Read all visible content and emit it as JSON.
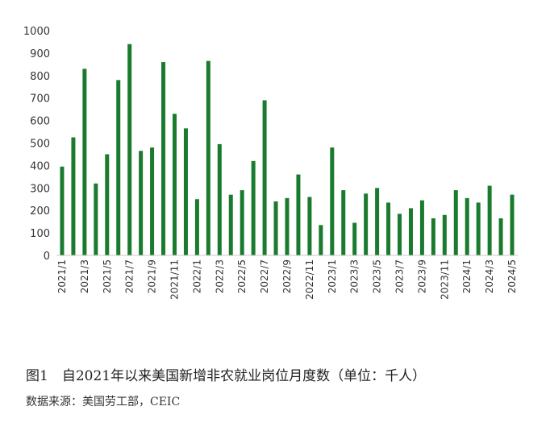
{
  "caption": "图1　自2021年以来美国新增非农就业岗位月度数（单位：千人）",
  "source": "数据来源：美国劳工部，CEIC",
  "colors": {
    "bar": "#1a7a2e",
    "axis": "#c8c8c8",
    "text": "#333333"
  },
  "chart_data": {
    "type": "bar",
    "ylim": [
      0,
      1000
    ],
    "yticks": [
      0,
      100,
      200,
      300,
      400,
      500,
      600,
      700,
      800,
      900,
      1000
    ],
    "grid": false,
    "categories": [
      "2021/1",
      "2021/2",
      "2021/3",
      "2021/4",
      "2021/5",
      "2021/6",
      "2021/7",
      "2021/8",
      "2021/9",
      "2021/10",
      "2021/11",
      "2021/12",
      "2022/1",
      "2022/2",
      "2022/3",
      "2022/4",
      "2022/5",
      "2022/6",
      "2022/7",
      "2022/8",
      "2022/9",
      "2022/10",
      "2022/11",
      "2022/12",
      "2023/1",
      "2023/2",
      "2023/3",
      "2023/4",
      "2023/5",
      "2023/6",
      "2023/7",
      "2023/8",
      "2023/9",
      "2023/10",
      "2023/11",
      "2023/12",
      "2024/1",
      "2024/2",
      "2024/3",
      "2024/4",
      "2024/5"
    ],
    "tick_labels": [
      "2021/1",
      "2021/3",
      "2021/5",
      "2021/7",
      "2021/9",
      "2021/11",
      "2022/1",
      "2022/3",
      "2022/5",
      "2022/7",
      "2022/9",
      "2022/11",
      "2023/1",
      "2023/3",
      "2023/5",
      "2023/7",
      "2023/9",
      "2023/11",
      "2024/1",
      "2024/3",
      "2024/5"
    ],
    "values": [
      395,
      525,
      830,
      320,
      450,
      780,
      940,
      465,
      480,
      860,
      630,
      565,
      250,
      865,
      495,
      270,
      290,
      420,
      690,
      240,
      255,
      360,
      260,
      135,
      480,
      290,
      145,
      275,
      300,
      235,
      185,
      210,
      245,
      165,
      180,
      290,
      255,
      235,
      310,
      165,
      270
    ]
  }
}
